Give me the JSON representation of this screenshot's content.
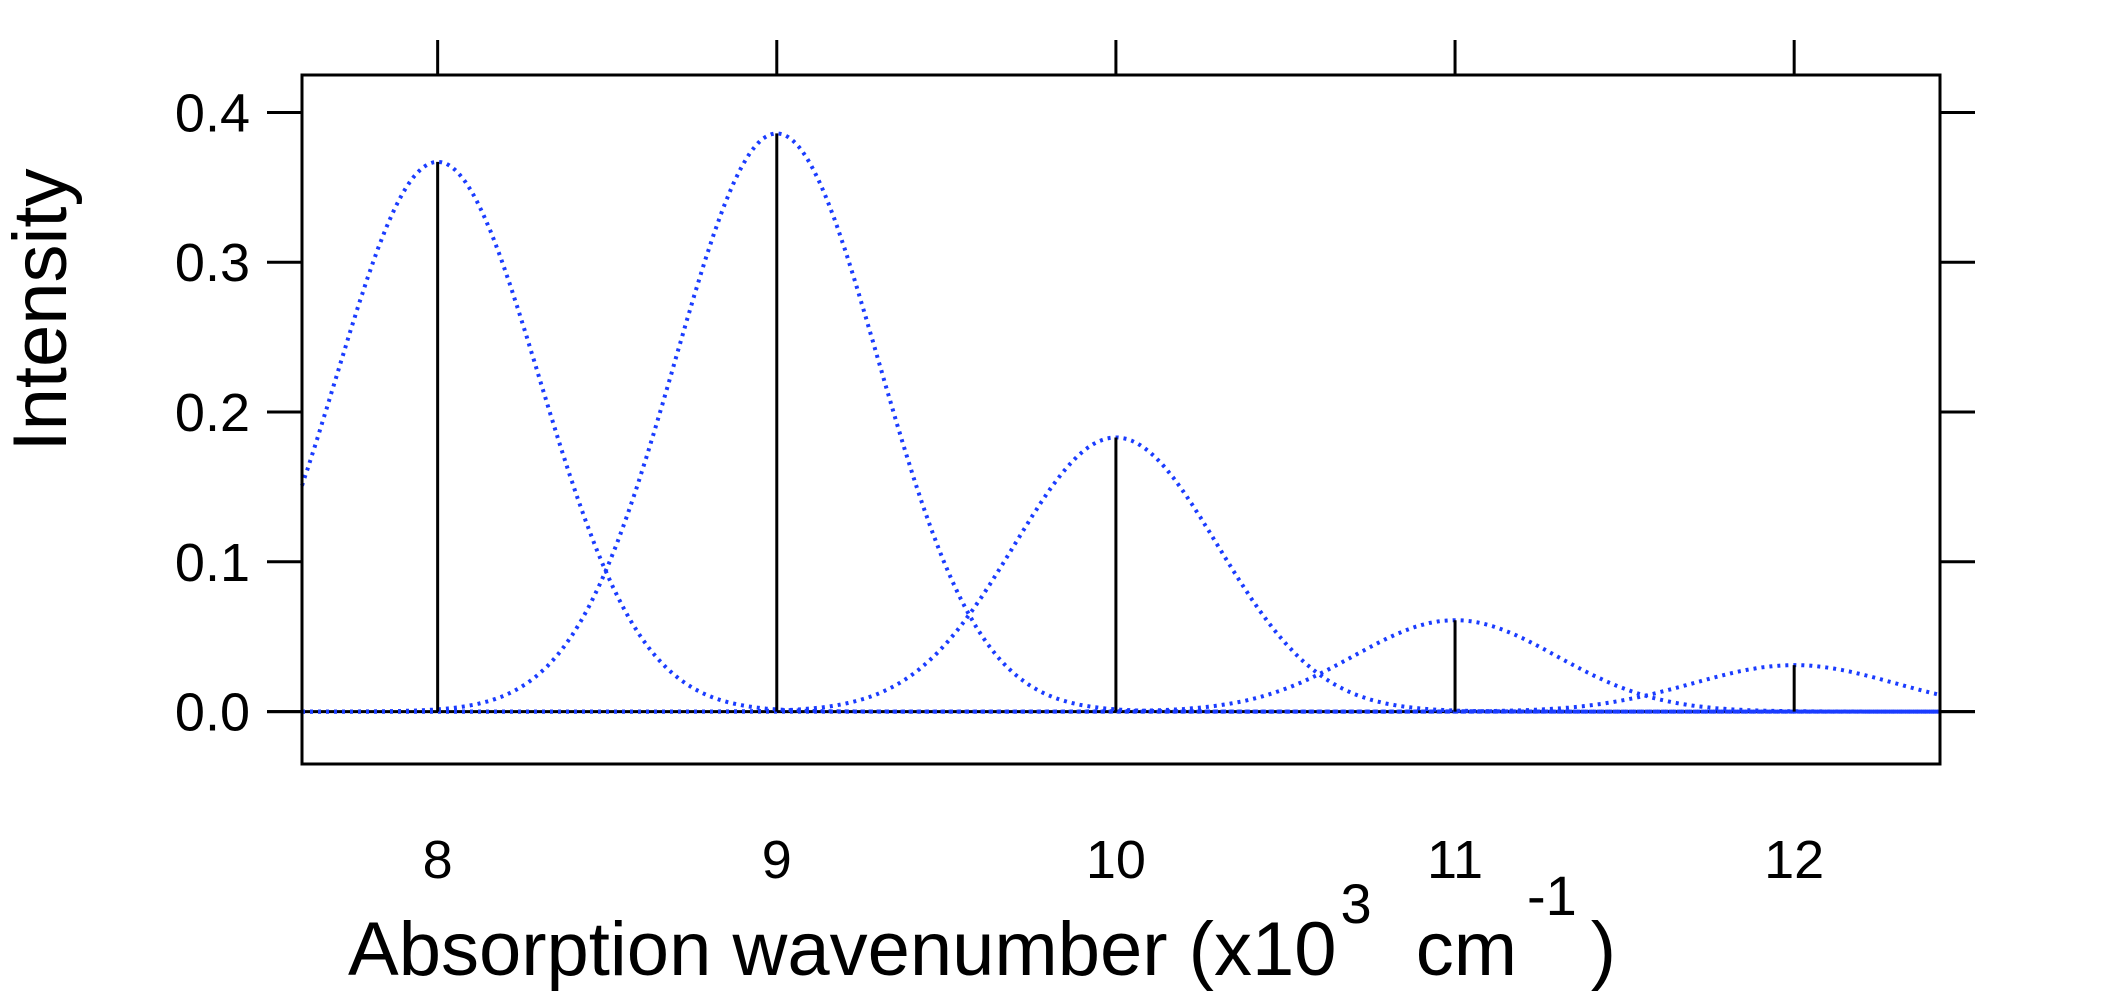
{
  "chart_data": {
    "type": "line",
    "title": "",
    "xlabel": "Absorption wavenumber (x10",
    "xlabel_exp": "3",
    "xlabel_unit": "cm",
    "xlabel_unit_exp": "-1",
    "xlabel_close": ")",
    "ylabel": "Intensity",
    "xlim": [
      7.6,
      12.43
    ],
    "ylim": [
      -0.035,
      0.425
    ],
    "x_ticks": [
      8,
      9,
      10,
      11,
      12
    ],
    "x_tick_labels": [
      "8",
      "9",
      "10",
      "11",
      "12"
    ],
    "y_ticks": [
      0.0,
      0.1,
      0.2,
      0.3,
      0.4
    ],
    "y_tick_labels": [
      "0.0",
      "0.1",
      "0.2",
      "0.3",
      "0.4"
    ],
    "grid": false,
    "legend": "none",
    "stick_color": "#000000",
    "curve_color": "#1a3cff",
    "sticks": [
      {
        "x": 8,
        "y": 0.367
      },
      {
        "x": 9,
        "y": 0.386
      },
      {
        "x": 10,
        "y": 0.183
      },
      {
        "x": 11,
        "y": 0.061
      },
      {
        "x": 12,
        "y": 0.031
      }
    ],
    "gaussian_sigma": 0.3
  }
}
